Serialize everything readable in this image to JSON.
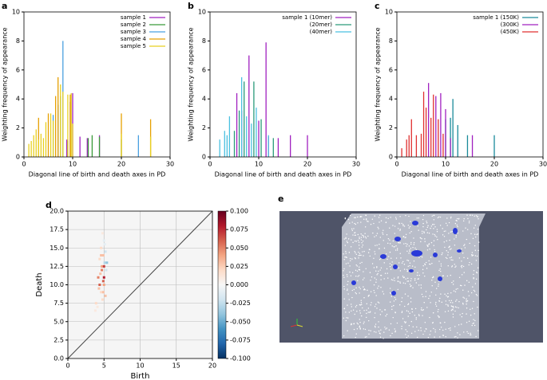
{
  "chart_data": [
    {
      "type": "spike",
      "panel": "a",
      "xlabel": "Diagonal line of birth and death axes in PD",
      "ylabel": "Weighting frequency of appearance",
      "xlim": [
        0,
        30
      ],
      "ylim": [
        0,
        10
      ],
      "xticks": [
        0,
        10,
        20,
        30
      ],
      "yticks": [
        0,
        2,
        4,
        6,
        8,
        10
      ],
      "legend": "upper right",
      "series": [
        {
          "name": "sample 1",
          "color": "#a020c0",
          "x": [
            8.8,
            9.5,
            10,
            11.5,
            13,
            15.5
          ],
          "values": [
            1.2,
            3.8,
            4.4,
            1.4,
            1.3,
            1.5
          ]
        },
        {
          "name": "sample 2",
          "color": "#3a9a3a",
          "x": [
            9,
            13.2,
            14,
            15.5
          ],
          "values": [
            1.1,
            1.3,
            1.5,
            1.4
          ]
        },
        {
          "name": "sample 3",
          "color": "#4aa0e0",
          "x": [
            6,
            7,
            7.5,
            8,
            20,
            23.5
          ],
          "values": [
            2.9,
            3.6,
            4.2,
            8,
            1.2,
            1.5
          ]
        },
        {
          "name": "sample 4",
          "color": "#e6a000",
          "x": [
            3,
            5,
            6.5,
            7,
            9.5,
            20,
            26
          ],
          "values": [
            2.7,
            3,
            4.2,
            5.5,
            4.3,
            3,
            2.6
          ]
        },
        {
          "name": "sample 5",
          "color": "#e8d020",
          "x": [
            1,
            1.5,
            2,
            2.5,
            3,
            3.5,
            4,
            4.5,
            5.5,
            6,
            7.5,
            8,
            9,
            9.7,
            10,
            20,
            26
          ],
          "values": [
            0.9,
            1.1,
            1.5,
            1.9,
            1.2,
            1.6,
            1.3,
            2.4,
            3,
            2.5,
            5,
            4.5,
            4.3,
            4.4,
            2.3,
            1.6,
            1.4
          ]
        }
      ]
    },
    {
      "type": "spike",
      "panel": "b",
      "xlabel": "Diagonal line of birth and death axes in PD",
      "ylabel": "Weighting frequency of appearance",
      "xlim": [
        0,
        30
      ],
      "ylim": [
        0,
        10
      ],
      "xticks": [
        0,
        10,
        20,
        30
      ],
      "yticks": [
        0,
        2,
        4,
        6,
        8,
        10
      ],
      "legend": "upper right",
      "series": [
        {
          "name": "sample 1 (10mer)",
          "color": "#a020c0",
          "x": [
            5.5,
            6.5,
            8,
            10,
            11.5,
            12,
            14,
            16.5,
            20
          ],
          "values": [
            4.4,
            3.2,
            7,
            2.5,
            7.9,
            1.4,
            1.3,
            1.5,
            1.5
          ]
        },
        {
          "name": "(20mer)",
          "color": "#2a9a7a",
          "x": [
            5,
            6,
            7,
            9,
            10.5,
            13
          ],
          "values": [
            1.8,
            3.2,
            5.2,
            5.2,
            2.6,
            1.3
          ]
        },
        {
          "name": "(40mer)",
          "color": "#4ac0e0",
          "x": [
            2,
            3,
            3.5,
            4,
            6.5,
            7.5,
            8.5,
            9.5,
            12
          ],
          "values": [
            1.2,
            1.8,
            1.5,
            2.8,
            5.5,
            2.8,
            2.3,
            3.4,
            1.5
          ]
        }
      ]
    },
    {
      "type": "spike",
      "panel": "c",
      "xlabel": "Diagonal line of birth and death axes in PD",
      "ylabel": "Weighting frequency of appearance",
      "xlim": [
        0,
        30
      ],
      "ylim": [
        0,
        10
      ],
      "xticks": [
        0,
        10,
        20,
        30
      ],
      "yticks": [
        0,
        2,
        4,
        6,
        8,
        10
      ],
      "legend": "upper right",
      "series": [
        {
          "name": "sample 1 (150K)",
          "color": "#1a8a9a",
          "x": [
            10,
            11,
            11.5,
            12.5,
            14.5,
            20
          ],
          "values": [
            2.6,
            2.7,
            4,
            2.2,
            1.5,
            1.5
          ]
        },
        {
          "name": "(300K)",
          "color": "#a020c0",
          "x": [
            6.5,
            8,
            9,
            10,
            11,
            15.5
          ],
          "values": [
            5.1,
            4.2,
            4.4,
            3.3,
            1.3,
            1.5
          ]
        },
        {
          "name": "(450K)",
          "color": "#e03030",
          "x": [
            1,
            2,
            2.5,
            3,
            4,
            5,
            5.5,
            6,
            7,
            7.5,
            8.5,
            9.5
          ],
          "values": [
            0.6,
            1.2,
            1.5,
            2.6,
            1.5,
            1.6,
            4.5,
            3.4,
            2.7,
            4.3,
            2.6,
            1.6
          ]
        }
      ]
    },
    {
      "type": "scatter",
      "panel": "d",
      "xlabel": "Birth",
      "ylabel": "Death",
      "grid": true,
      "colormap": "RdBu_r",
      "xlim": [
        0,
        20
      ],
      "ylim": [
        0,
        20
      ],
      "xticks": [
        0,
        5,
        10,
        15,
        20
      ],
      "yticks": [
        {
          "value": 0,
          "label": "0.0"
        },
        2.5,
        {
          "value": 5,
          "label": "5.0"
        },
        7.5,
        {
          "value": 10,
          "label": "10.0"
        },
        12.5,
        {
          "value": 15,
          "label": "15.0"
        },
        17.5,
        {
          "value": 20,
          "label": "20.0"
        }
      ],
      "clim": [
        -0.1,
        0.1
      ],
      "cticks": [
        {
          "value": 0.1,
          "label": "0.100"
        },
        0.075,
        {
          "value": 0.05,
          "label": "0.050"
        },
        0.025,
        {
          "value": 0,
          "label": "0.000"
        },
        -0.025,
        {
          "value": -0.05,
          "label": "-0.050"
        },
        -0.075,
        {
          "value": -0.1,
          "label": "-0.100"
        }
      ],
      "x": [
        4.8,
        5.0,
        4.6,
        5.2,
        4.9,
        4.4,
        5.1,
        4.7,
        5.3,
        4.5,
        4.2,
        4.9,
        5.0,
        4.3,
        4.6,
        5.2,
        4.8,
        3.9,
        4.1,
        5.0,
        4.7,
        5.4,
        4.4,
        4.9,
        5.1,
        4.6,
        3.8,
        5.0
      ],
      "y": [
        17,
        16,
        15,
        14.5,
        14,
        13.5,
        13,
        12.5,
        12,
        11.5,
        11,
        10.5,
        10,
        9.5,
        9,
        8.5,
        8,
        7.5,
        7,
        11,
        12,
        13,
        10,
        9,
        15.5,
        14,
        6.5,
        12.5
      ],
      "values": [
        0.01,
        -0.01,
        0.02,
        -0.02,
        0.03,
        0.02,
        -0.03,
        0.04,
        -0.02,
        0.03,
        0.05,
        0.06,
        0.04,
        0.03,
        0.02,
        0.03,
        0.02,
        0.02,
        0.01,
        0.08,
        0.05,
        -0.04,
        0.06,
        0.03,
        -0.01,
        0.03,
        0.01,
        0.07
      ]
    }
  ],
  "panel_e": {
    "label": "e"
  }
}
